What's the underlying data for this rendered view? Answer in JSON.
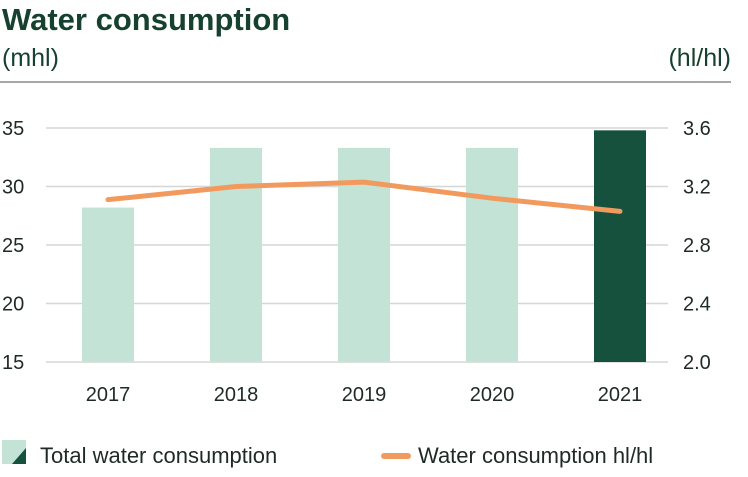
{
  "chart_data": {
    "type": "bar",
    "title": "Water consumption",
    "ylabel_left": "(mhl)",
    "ylabel_right": "(hl/hl)",
    "categories": [
      "2017",
      "2018",
      "2019",
      "2020",
      "2021"
    ],
    "series": [
      {
        "name": "Total water consumption",
        "type": "bar",
        "axis": "left",
        "values": [
          28.2,
          33.3,
          33.3,
          33.3,
          34.8
        ],
        "highlight_index": 4
      },
      {
        "name": "Water consumption hl/hl",
        "type": "line",
        "axis": "right",
        "values": [
          3.11,
          3.2,
          3.23,
          3.12,
          3.03
        ]
      }
    ],
    "ylim_left": [
      15,
      35
    ],
    "yticks_left": [
      "35",
      "30",
      "25",
      "20",
      "15"
    ],
    "ylim_right": [
      2.0,
      3.6
    ],
    "yticks_right": [
      "3.6",
      "3.2",
      "2.8",
      "2.4",
      "2.0"
    ],
    "grid": true,
    "legend_placement": "bottom"
  },
  "colors": {
    "bar_light": "#c2e3d6",
    "bar_highlight": "#16513e",
    "line": "#f29a5e",
    "title": "#16402f"
  }
}
